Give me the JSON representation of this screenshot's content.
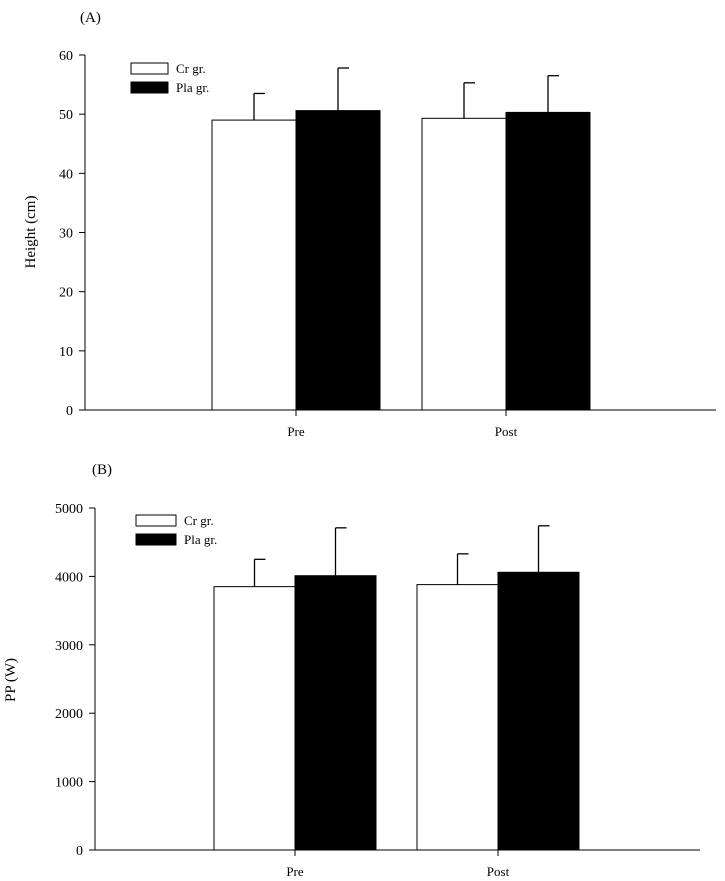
{
  "chart_data": [
    {
      "type": "bar",
      "panel_label": "(A)",
      "categories": [
        "Pre",
        "Post"
      ],
      "series": [
        {
          "name": "Cr gr.",
          "color": "#ffffff",
          "values": [
            49.0,
            49.3
          ],
          "errors": [
            4.5,
            6.0
          ]
        },
        {
          "name": "Pla gr.",
          "color": "#000000",
          "values": [
            50.6,
            50.3
          ],
          "errors": [
            7.2,
            6.2
          ]
        }
      ],
      "ylabel": "Height (cm)",
      "ylim": [
        0,
        60
      ],
      "yticks": [
        0,
        10,
        20,
        30,
        40,
        50,
        60
      ],
      "legend_position": "top-left",
      "grid": false
    },
    {
      "type": "bar",
      "panel_label": "(B)",
      "categories": [
        "Pre",
        "Post"
      ],
      "series": [
        {
          "name": "Cr gr.",
          "color": "#ffffff",
          "values": [
            3850,
            3880
          ],
          "errors": [
            400,
            450
          ]
        },
        {
          "name": "Pla gr.",
          "color": "#000000",
          "values": [
            4010,
            4060
          ],
          "errors": [
            700,
            680
          ]
        }
      ],
      "ylabel": "PP (W)",
      "ylim": [
        0,
        5000
      ],
      "yticks": [
        0,
        1000,
        2000,
        3000,
        4000,
        5000
      ],
      "legend_position": "top-left",
      "grid": false
    }
  ]
}
